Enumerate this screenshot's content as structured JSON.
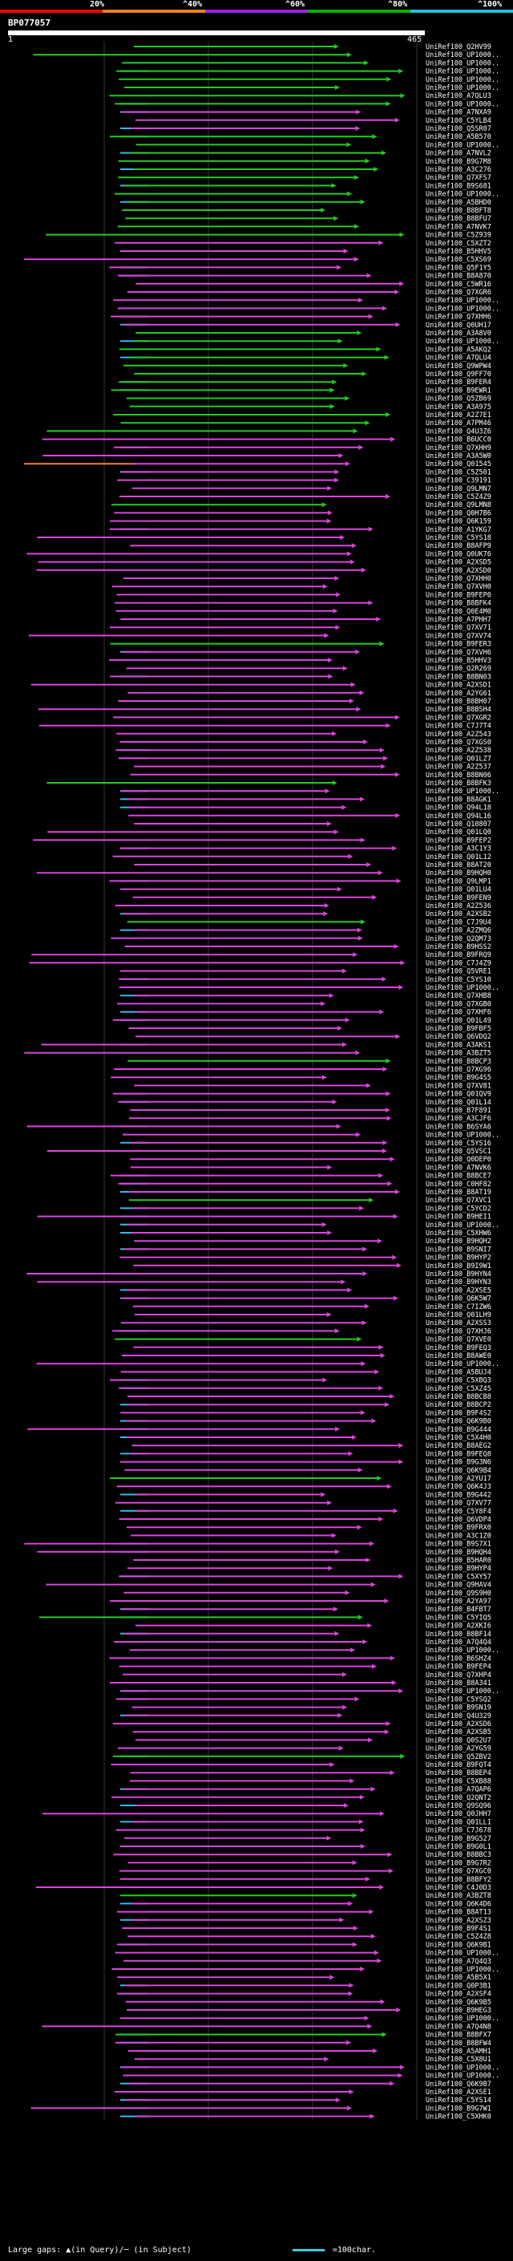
{
  "legend": {
    "labels": [
      "20%",
      "^40%",
      "^60%",
      "^80%",
      "^100%"
    ],
    "colors": [
      "#ff0000",
      "#f08020",
      "#a020f0",
      "#00b000",
      "#20c0e0"
    ]
  },
  "query": {
    "title": "BP077057",
    "start": "1",
    "end": "465"
  },
  "hit_colors": {
    "green": "#22cc22",
    "magenta": "#dd44dd",
    "cyan": "#33bbee",
    "orange": "#ee8822"
  },
  "hits": [
    "UniRef100_Q2HV99",
    "UniRef100_UP1000..",
    "UniRef100_UP1000..",
    "UniRef100_UP1000..",
    "UniRef100_UP1000..",
    "UniRef100_UP1000..",
    "UniRef100_A7QLU3",
    "UniRef100_UP1000..",
    "UniRef100_A7NXA9",
    "UniRef100_C5YLB4",
    "UniRef100_Q5SR07",
    "UniRef100_A5B570",
    "UniRef100_UP1000..",
    "UniRef100_A7NVL2",
    "UniRef100_B9G7M8",
    "UniRef100_A3C276",
    "UniRef100_Q7XFS7",
    "UniRef100_B9S681",
    "UniRef100_UP1000..",
    "UniRef100_A5BHD0",
    "UniRef100_B8BFT8",
    "UniRef100_B8BFU7",
    "UniRef100_A7NVK7",
    "UniRef100_C5Z939",
    "UniRef100_C5XZT2",
    "UniRef100_B5HHV5",
    "UniRef100_C5XS69",
    "UniRef100_Q5F1Y5",
    "UniRef100_B8A870",
    "UniRef100_C5WR16",
    "UniRef100_Q7XGR6",
    "UniRef100_UP1000..",
    "UniRef100_UP1000..",
    "UniRef100_Q7XHH6",
    "UniRef100_Q0UH17",
    "UniRef100_A3A8V0",
    "UniRef100_UP1000..",
    "UniRef100_A5AKQ2",
    "UniRef100_A7QLU4",
    "UniRef100_Q9WPW4",
    "UniRef100_Q9FF70",
    "UniRef100_B9FER4",
    "UniRef100_B9EWR1",
    "UniRef100_Q5ZB69",
    "UniRef100_A3A975",
    "UniRef100_A2Z7E1",
    "UniRef100_A7PM46",
    "UniRef100_Q4U3Z6",
    "UniRef100_B6UCC0",
    "UniRef100_Q7XHH9",
    "UniRef100_A3A5W0",
    "UniRef100_Q01545",
    "UniRef100_C5Z501",
    "UniRef100_C39191",
    "UniRef100_Q9LMN7",
    "UniRef100_C5Z4Z9",
    "UniRef100_Q9LMN8",
    "UniRef100_Q0H7B6",
    "UniRef100_Q6K159",
    "UniRef100_A1YKG7",
    "UniRef100_C5YS18",
    "UniRef100_B8AFP9",
    "UniRef100_Q0UK76",
    "UniRef100_A2XSD5",
    "UniRef100_A2XSD0",
    "UniRef100_Q7XHH0",
    "UniRef100_Q7XVH0",
    "UniRef100_B9FEP0",
    "UniRef100_B8BFK4",
    "UniRef100_Q0E4M0",
    "UniRef100_A7PHH7",
    "UniRef100_Q7XV71",
    "UniRef100_Q7XV74",
    "UniRef100_B9FER3",
    "UniRef100_Q7XVH6",
    "UniRef100_B5HHV3",
    "UniRef100_Q2R269",
    "UniRef100_B8BN03",
    "UniRef100_A2XSD1",
    "UniRef100_A2YG61",
    "UniRef100_B8BH07",
    "UniRef100_B8BSH4",
    "UniRef100_Q7XGR2",
    "UniRef100_C7J7T4",
    "UniRef100_A2Z543",
    "UniRef100_Q7XGS0",
    "UniRef100_A2Z538",
    "UniRef100_Q01LZ7",
    "UniRef100_A2Z537",
    "UniRef100_B8BN06",
    "UniRef100_B8BFK3",
    "UniRef100_UP1000..",
    "UniRef100_B8AGK1",
    "UniRef100_Q94L18",
    "UniRef100_Q94L16",
    "UniRef100_Q10807",
    "UniRef100_Q01LQ0",
    "UniRef100_B9FEP2",
    "UniRef100_A3C1Y3",
    "UniRef100_Q01L12",
    "UniRef100_B8AT20",
    "UniRef100_B9HQH0",
    "UniRef100_Q9LMP1",
    "UniRef100_Q01LU4",
    "UniRef100_B9FEN9",
    "UniRef100_A2Z536",
    "UniRef100_A2XSB2",
    "UniRef100_C7J9U4",
    "UniRef100_A2ZMQ6",
    "UniRef100_Q2QM73",
    "UniRef100_B9HSS2",
    "UniRef100_B9FRQ9",
    "UniRef100_C7J4Z9",
    "UniRef100_Q5VRE1",
    "UniRef100_C5YS10",
    "UniRef100_UP1000..",
    "UniRef100_Q7XHB8",
    "UniRef100_Q7XGB0",
    "UniRef100_Q7XHF6",
    "UniRef100_Q01L49",
    "UniRef100_B9FBF5",
    "UniRef100_Q6VDQ2",
    "UniRef100_A3AKS1",
    "UniRef100_A3BZT5",
    "UniRef100_B8BCP3",
    "UniRef100_Q7XG96",
    "UniRef100_B9G4S5",
    "UniRef100_Q7XV81",
    "UniRef100_Q01QV9",
    "UniRef100_Q01L14",
    "UniRef100_B7F891",
    "UniRef100_A3CJF6",
    "UniRef100_B6SYA6",
    "UniRef100_UP1000..",
    "UniRef100_C5YS16",
    "UniRef100_Q5VSC1",
    "UniRef100_Q0DEP0",
    "UniRef100_A7NVK6",
    "UniRef100_B8BCE7",
    "UniRef100_C0HF82",
    "UniRef100_B8AT19",
    "UniRef100_Q7XVC1",
    "UniRef100_C5YCD2",
    "UniRef100_B9HEI1",
    "UniRef100_UP1000..",
    "UniRef100_C5XHW6",
    "UniRef100_B9HQH2",
    "UniRef100_B9SNI7",
    "UniRef100_B9HYP2",
    "UniRef100_B9I9W1",
    "UniRef100_B9HYN4",
    "UniRef100_B9HYN3",
    "UniRef100_A2XSE5",
    "UniRef100_Q6K5W7",
    "UniRef100_C7IZW6",
    "UniRef100_Q01LH9",
    "UniRef100_A2XSS3",
    "UniRef100_Q7XHJ6",
    "UniRef100_Q7XVE0",
    "UniRef100_B9FEQ3",
    "UniRef100_B8AWE0",
    "UniRef100_UP1000..",
    "UniRef100_A5BUJ4",
    "UniRef100_C5XBQ3",
    "UniRef100_C5XZ45",
    "UniRef100_B8BCB8",
    "UniRef100_B8BCP2",
    "UniRef100_B9F4S2",
    "UniRef100_Q6K9B0",
    "UniRef100_B9G444",
    "UniRef100_C5X4H0",
    "UniRef100_B8AEG2",
    "UniRef100_B9FEQ8",
    "UniRef100_B9G3N6",
    "UniRef100_Q6K9B4",
    "UniRef100_A2YU17",
    "UniRef100_Q6K4J3",
    "UniRef100_B9G442",
    "UniRef100_Q7XV77",
    "UniRef100_C5Y8F4",
    "UniRef100_Q6VDP4",
    "UniRef100_B9FRX0",
    "UniRef100_A3C1Z0",
    "UniRef100_B9S7X1",
    "UniRef100_B9HQH4",
    "UniRef100_B5HAR0",
    "UniRef100_B9HYP4",
    "UniRef100_C5XY57",
    "UniRef100_Q9HAV4",
    "UniRef100_Q9S9H0",
    "UniRef100_A2YA97",
    "UniRef100_B4FBT7",
    "UniRef100_C5YIQ5",
    "UniRef100_A2XKI6",
    "UniRef100_B8BF14",
    "UniRef100_A7Q4Q4",
    "UniRef100_UP1000..",
    "UniRef100_B6SHZ4",
    "UniRef100_B9FEP4",
    "UniRef100_Q7XHP4",
    "UniRef100_B8A341",
    "UniRef100_UP1000..",
    "UniRef100_C5YSQ2",
    "UniRef100_B9SN19",
    "UniRef100_Q4U329",
    "UniRef100_A2XSD6",
    "UniRef100_A2XSB5",
    "UniRef100_Q0S2U7",
    "UniRef100_A2YG59",
    "UniRef100_Q5ZBV2",
    "UniRef100_B9FQT4",
    "UniRef100_B8BEP4",
    "UniRef100_C5XB88",
    "UniRef100_A7QAP6",
    "UniRef100_Q2QNT2",
    "UniRef100_Q9SQ96",
    "UniRef100_Q0JHH7",
    "UniRef100_Q01LL1",
    "UniRef100_C7J678",
    "UniRef100_B9G527",
    "UniRef100_B9G0L1",
    "UniRef100_B8BBC3",
    "UniRef100_B9G7R2",
    "UniRef100_Q7XGC0",
    "UniRef100_B8BFY2",
    "UniRef100_C4J0D3",
    "UniRef100_A3BZT8",
    "UniRef100_Q6K4D6",
    "UniRef100_B8AT13",
    "UniRef100_A2XSZ3",
    "UniRef100_B9F4S1",
    "UniRef100_C5Z4Z8",
    "UniRef100_Q6K9B1",
    "UniRef100_UP1000..",
    "UniRef100_A7Q4Q3",
    "UniRef100_UP1000..",
    "UniRef100_A5B5X1",
    "UniRef100_Q0P3B1",
    "UniRef100_A2XSF4",
    "UniRef100_Q6K9B5",
    "UniRef100_B9HEG3",
    "UniRef100_UP1000..",
    "UniRef100_A7Q4N8",
    "UniRef100_B8BFX7",
    "UniRef100_B8BFW4",
    "UniRef100_A5AMH1",
    "UniRef100_C5X8U1",
    "UniRef100_UP1000..",
    "UniRef100_UP1000..",
    "UniRef100_Q6K9B7",
    "UniRef100_A2XSE1",
    "UniRef100_C5YS14",
    "UniRef100_B9G7W1",
    "UniRef100_C5XHK0"
  ],
  "footer": {
    "left": "Large gaps: ▲(in Query)/─ (in Subject)",
    "right": "=100char."
  }
}
